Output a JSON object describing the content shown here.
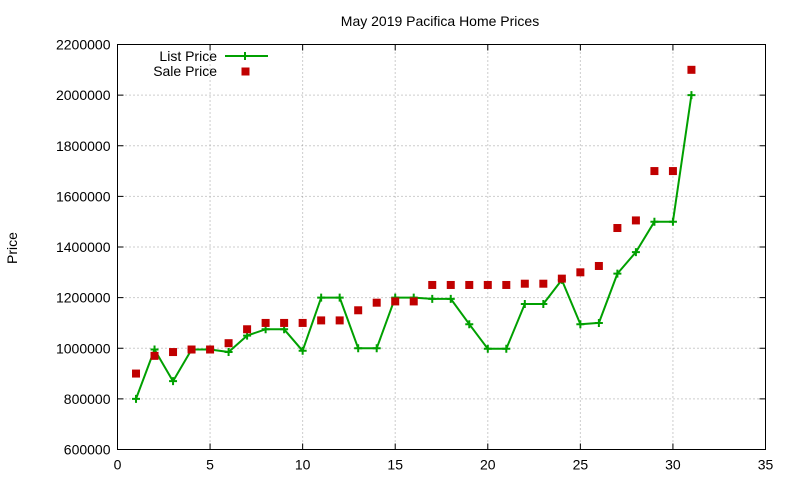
{
  "chart_data": {
    "type": "line",
    "title": "May 2019 Pacifica Home Prices",
    "xlabel": "",
    "ylabel": "Price",
    "xlim": [
      0,
      35
    ],
    "ylim": [
      600000,
      2200000
    ],
    "xticks": [
      0,
      5,
      10,
      15,
      20,
      25,
      30,
      35
    ],
    "yticks": [
      600000,
      800000,
      1000000,
      1200000,
      1400000,
      1600000,
      1800000,
      2000000,
      2200000
    ],
    "grid": true,
    "legend": "top-left",
    "series": [
      {
        "name": "List Price",
        "style": "linespoints",
        "color": "#00a000",
        "x": [
          1,
          2,
          3,
          4,
          5,
          6,
          7,
          8,
          9,
          10,
          11,
          12,
          13,
          14,
          15,
          16,
          17,
          18,
          19,
          20,
          21,
          22,
          23,
          24,
          25,
          26,
          27,
          28,
          29,
          30,
          31
        ],
        "values": [
          800000,
          995000,
          870000,
          995000,
          995000,
          985000,
          1050000,
          1075000,
          1075000,
          990000,
          1200000,
          1200000,
          1000000,
          1000000,
          1200000,
          1200000,
          1195000,
          1195000,
          1095000,
          998000,
          998000,
          1175000,
          1175000,
          1270000,
          1095000,
          1100000,
          1295000,
          1380000,
          1500000,
          1500000,
          2000000
        ]
      },
      {
        "name": "Sale Price",
        "style": "points",
        "color": "#c00000",
        "x": [
          1,
          2,
          3,
          4,
          5,
          6,
          7,
          8,
          9,
          10,
          11,
          12,
          13,
          14,
          15,
          16,
          17,
          18,
          19,
          20,
          21,
          22,
          23,
          24,
          25,
          26,
          27,
          28,
          29,
          30,
          31
        ],
        "values": [
          900000,
          970000,
          985000,
          995000,
          995000,
          1020000,
          1075000,
          1100000,
          1100000,
          1100000,
          1110000,
          1110000,
          1150000,
          1180000,
          1185000,
          1185000,
          1250000,
          1250000,
          1250000,
          1250000,
          1250000,
          1255000,
          1255000,
          1275000,
          1300000,
          1325000,
          1475000,
          1505000,
          1700000,
          1700000,
          2100000
        ]
      }
    ]
  }
}
